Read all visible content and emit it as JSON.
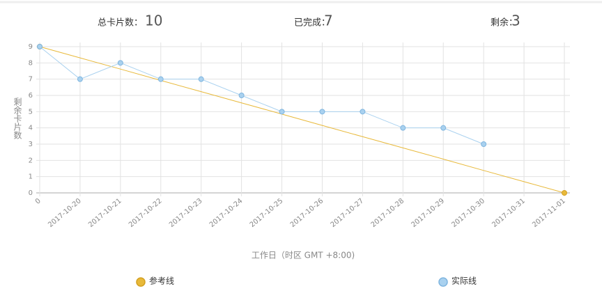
{
  "header": {
    "stats": [
      {
        "label": "总卡片数：",
        "value": 10
      },
      {
        "label": "已完成：",
        "value": 7
      },
      {
        "label": "剩余：",
        "value": 3
      }
    ]
  },
  "chart_data": {
    "type": "line",
    "categories": [
      "0",
      "2017-10-20",
      "2017-10-21",
      "2017-10-22",
      "2017-10-23",
      "2017-10-24",
      "2017-10-25",
      "2017-10-26",
      "2017-10-27",
      "2017-10-28",
      "2017-10-29",
      "2017-10-30",
      "2017-10-31",
      "2017-11-01"
    ],
    "series": [
      {
        "name": "参考线",
        "color": "#e8b93a",
        "values": [
          9,
          8.31,
          7.62,
          6.92,
          6.23,
          5.54,
          4.85,
          4.15,
          3.46,
          2.77,
          2.08,
          1.38,
          0.69,
          0
        ]
      },
      {
        "name": "实际线",
        "color": "#a9d1ef",
        "values": [
          9,
          7,
          8,
          7,
          7,
          6,
          5,
          5,
          5,
          4,
          4,
          3,
          null,
          null
        ]
      }
    ],
    "ylim": [
      0,
      9
    ],
    "yticks": [
      0,
      1,
      2,
      3,
      4,
      5,
      6,
      7,
      8,
      9
    ],
    "ylabel": "剩余卡片数",
    "xlabel": "工作日（时区 GMT +8:00)",
    "grid": true
  }
}
